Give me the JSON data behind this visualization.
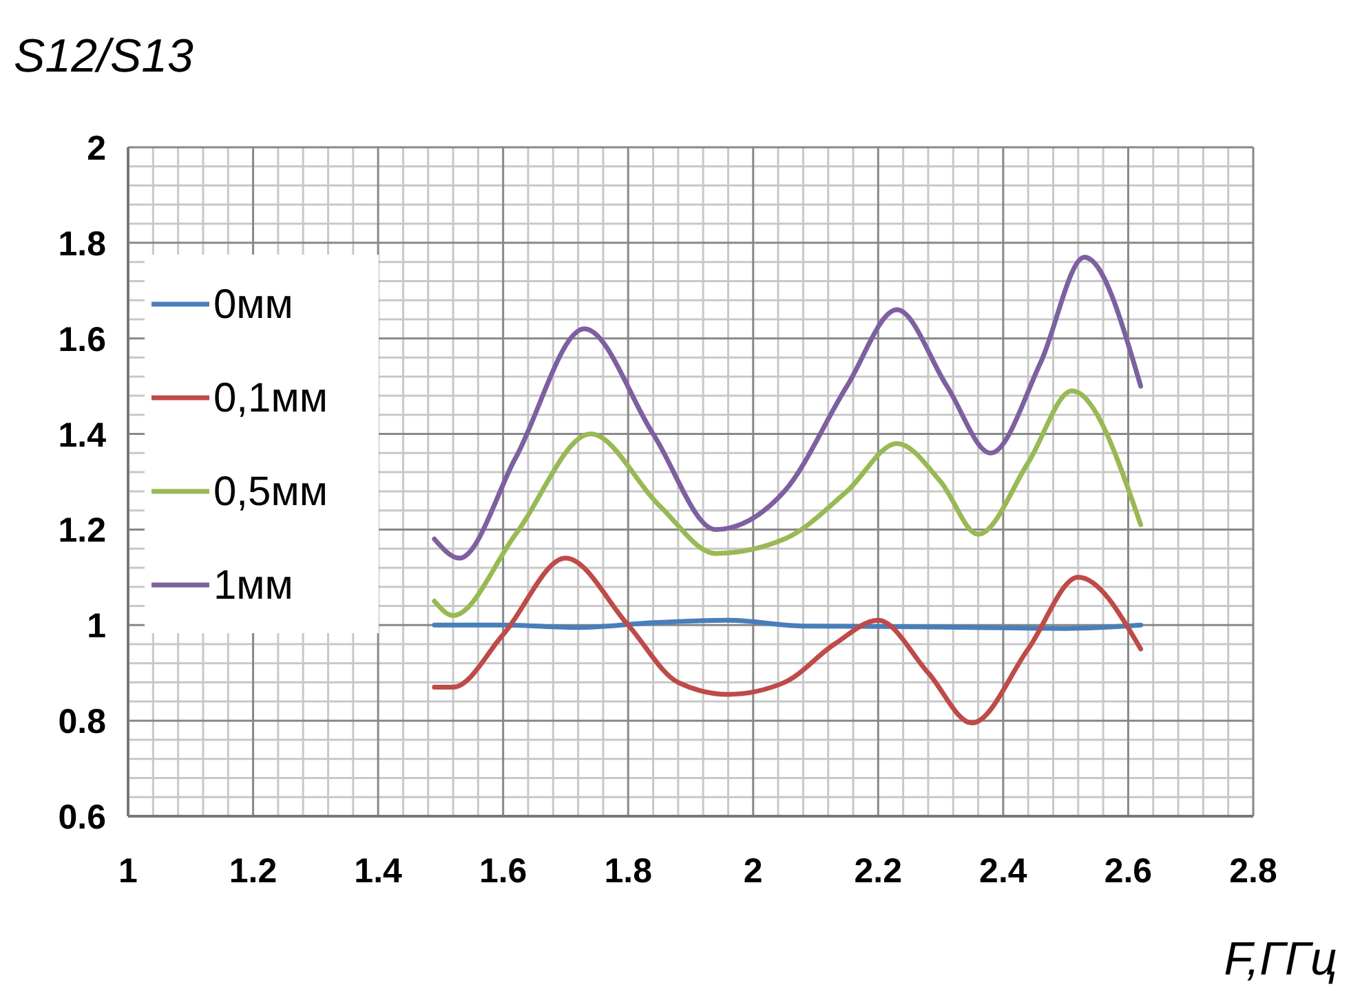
{
  "chart_data": {
    "type": "line",
    "ylabel": "S12/S13",
    "xlabel": "F,ГГц",
    "xlim": [
      1,
      2.8
    ],
    "xticks": [
      1,
      {
        "value": 1.2,
        "label": "1.2"
      },
      {
        "value": 1.4,
        "label": "1.4"
      },
      {
        "value": 1.6,
        "label": "1.6"
      },
      {
        "value": 1.8,
        "label": "1.8"
      },
      2,
      {
        "value": 2.2,
        "label": "2.2"
      },
      {
        "value": 2.4,
        "label": "2.4"
      },
      {
        "value": 2.6,
        "label": "2.6"
      },
      {
        "value": 2.8,
        "label": "2.8"
      }
    ],
    "ylim": [
      0.6,
      2
    ],
    "yticks": [
      {
        "value": 0.6,
        "label": "0.6"
      },
      {
        "value": 0.8,
        "label": "0.8"
      },
      1,
      {
        "value": 1.2,
        "label": "1.2"
      },
      {
        "value": 1.4,
        "label": "1.4"
      },
      {
        "value": 1.6,
        "label": "1.6"
      },
      {
        "value": 1.8,
        "label": "1.8"
      },
      2
    ],
    "grid": true,
    "legend": "top left",
    "marker": "none",
    "line_style": "solid",
    "series": [
      {
        "name": "0мм",
        "color": "#4a7ebb",
        "x": [
          1.49,
          1.6,
          1.72,
          1.84,
          1.96,
          2.08,
          2.2,
          2.35,
          2.5,
          2.62
        ],
        "values": [
          1.0,
          1.0,
          0.995,
          1.005,
          1.01,
          0.998,
          0.997,
          0.995,
          0.993,
          1.0
        ]
      },
      {
        "name": "0,1мм",
        "color": "#be4b48",
        "x": [
          1.49,
          1.52,
          1.6,
          1.7,
          1.8,
          1.88,
          1.96,
          2.05,
          2.13,
          2.2,
          2.28,
          2.35,
          2.44,
          2.52,
          2.62
        ],
        "values": [
          0.87,
          0.87,
          0.98,
          1.14,
          1.0,
          0.88,
          0.855,
          0.88,
          0.96,
          1.01,
          0.9,
          0.795,
          0.95,
          1.1,
          0.95
        ]
      },
      {
        "name": "0,5мм",
        "color": "#98b954",
        "x": [
          1.49,
          1.52,
          1.62,
          1.74,
          1.85,
          1.94,
          2.05,
          2.15,
          2.23,
          2.3,
          2.36,
          2.44,
          2.51,
          2.62
        ],
        "values": [
          1.05,
          1.02,
          1.19,
          1.4,
          1.25,
          1.15,
          1.18,
          1.28,
          1.38,
          1.3,
          1.19,
          1.34,
          1.49,
          1.21
        ]
      },
      {
        "name": "1мм",
        "color": "#7d60a0",
        "x": [
          1.49,
          1.53,
          1.62,
          1.73,
          1.84,
          1.94,
          2.05,
          2.15,
          2.23,
          2.31,
          2.38,
          2.46,
          2.53,
          2.62
        ],
        "values": [
          1.18,
          1.14,
          1.35,
          1.62,
          1.4,
          1.2,
          1.28,
          1.5,
          1.66,
          1.5,
          1.36,
          1.55,
          1.77,
          1.5
        ]
      }
    ]
  }
}
